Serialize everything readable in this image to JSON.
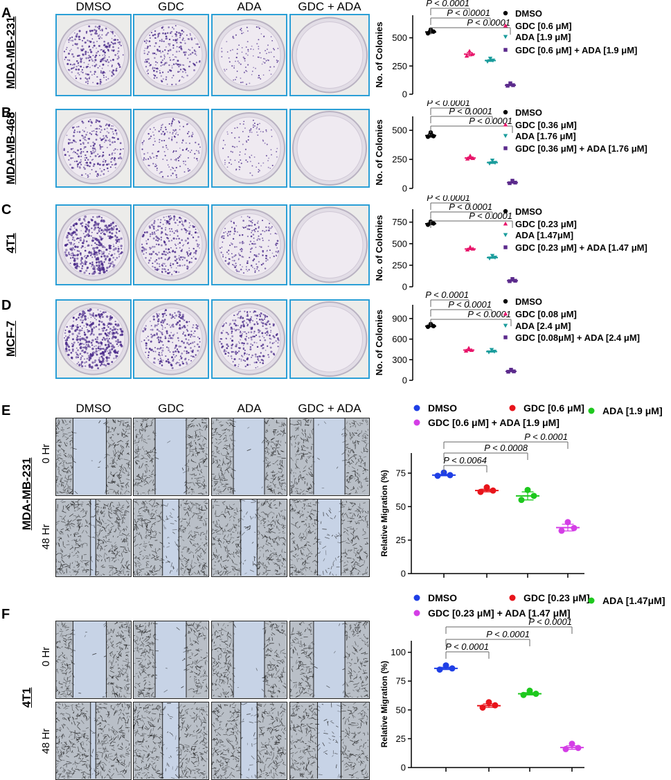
{
  "panels": {
    "A": {
      "letter": "A",
      "cell_line": "MDA-MB-231"
    },
    "B": {
      "letter": "B",
      "cell_line": "MDA-MB-468"
    },
    "C": {
      "letter": "C",
      "cell_line": "4T1"
    },
    "D": {
      "letter": "D",
      "cell_line": "MCF-7"
    },
    "E": {
      "letter": "E",
      "cell_line": "MDA-MB-231",
      "time_labels": [
        "0 Hr",
        "48 Hr"
      ]
    },
    "F": {
      "letter": "F",
      "cell_line": "4T1",
      "time_labels": [
        "0 Hr",
        "48 Hr"
      ]
    }
  },
  "column_headers": [
    "DMSO",
    "GDC",
    "ADA",
    "GDC + ADA"
  ],
  "colony_density": [
    [
      0.55,
      0.45,
      0.22,
      0.0
    ],
    [
      0.5,
      0.32,
      0.2,
      0.0
    ],
    [
      0.8,
      0.55,
      0.4,
      0.0
    ],
    [
      0.8,
      0.55,
      0.55,
      0.0
    ]
  ],
  "colors": {
    "frame_blue": "#2a9fd6",
    "col_dmso": "#000000",
    "col_gdc": "#e8156a",
    "col_ada": "#1a9c9c",
    "col_combo": "#5b2a8c",
    "mig_dmso": "#1f3fe6",
    "mig_gdc": "#e8141b",
    "mig_ada": "#1ec81e",
    "mig_combo": "#d43ee6",
    "stain": "#4a2a8a",
    "scratch_gap": "#c7d3e6"
  },
  "chart_data": [
    {
      "panel": "A",
      "type": "scatter",
      "ylabel": "No. of Colonies",
      "ylim": [
        0,
        700
      ],
      "yticks": [
        0,
        250,
        500
      ],
      "series": [
        {
          "name": "DMSO",
          "marker": "circle",
          "values": [
            540,
            560,
            555
          ]
        },
        {
          "name": "GDC [0.6 μM]",
          "marker": "triangle",
          "values": [
            340,
            370,
            355
          ]
        },
        {
          "name": "ADA [1.9 μM]",
          "marker": "triangle-down",
          "values": [
            290,
            305,
            300
          ]
        },
        {
          "name": "GDC [0.6 μM] + ADA [1.9 μM]",
          "marker": "square",
          "values": [
            75,
            85,
            80
          ]
        }
      ],
      "pvalues": [
        "P < 0.0001",
        "P < 0.0001",
        "P < 0.0001"
      ]
    },
    {
      "panel": "B",
      "type": "scatter",
      "ylabel": "No. of Colonies",
      "ylim": [
        0,
        620
      ],
      "yticks": [
        0,
        250,
        500
      ],
      "series": [
        {
          "name": "DMSO",
          "marker": "circle",
          "values": [
            445,
            470,
            450
          ]
        },
        {
          "name": "GDC [0.36 μM]",
          "marker": "triangle",
          "values": [
            255,
            270,
            260
          ]
        },
        {
          "name": "ADA [1.76 μM]",
          "marker": "triangle-down",
          "values": [
            215,
            230,
            222
          ]
        },
        {
          "name": "GDC [0.36 μM] + ADA [1.76 μM]",
          "marker": "square",
          "values": [
            45,
            55,
            50
          ]
        }
      ],
      "pvalues": [
        "P < 0.0001",
        "P < 0.0001",
        "P < 0.0001"
      ]
    },
    {
      "panel": "C",
      "type": "scatter",
      "ylabel": "No. of Colonies",
      "ylim": [
        0,
        900
      ],
      "yticks": [
        0,
        250,
        500,
        750
      ],
      "series": [
        {
          "name": "DMSO",
          "marker": "circle",
          "values": [
            720,
            740,
            735
          ]
        },
        {
          "name": "GDC [0.23 μM]",
          "marker": "triangle",
          "values": [
            430,
            445,
            440
          ]
        },
        {
          "name": "ADA [1.47μM]",
          "marker": "triangle-down",
          "values": [
            330,
            345,
            340
          ]
        },
        {
          "name": "GDC [0.23 μM] + ADA [1.47 μM]",
          "marker": "square",
          "values": [
            65,
            75,
            70
          ]
        }
      ],
      "pvalues": [
        "P < 0.0001",
        "P < 0.0001",
        "P < 0.0001"
      ]
    },
    {
      "panel": "D",
      "type": "scatter",
      "ylabel": "No. of Colonies",
      "ylim": [
        0,
        1100
      ],
      "yticks": [
        0,
        300,
        600,
        900
      ],
      "series": [
        {
          "name": "DMSO",
          "marker": "circle",
          "values": [
            780,
            800,
            790
          ]
        },
        {
          "name": "GDC [0.08 μM]",
          "marker": "triangle",
          "values": [
            430,
            450,
            440
          ]
        },
        {
          "name": "ADA [2.4 μM]",
          "marker": "triangle-down",
          "values": [
            410,
            425,
            420
          ]
        },
        {
          "name": "GDC [0.08μM] + ADA [2.4 μM]",
          "marker": "square",
          "values": [
            125,
            135,
            130
          ]
        }
      ],
      "pvalues": [
        "P < 0.0001",
        "P < 0.0001",
        "P < 0.0001"
      ]
    },
    {
      "panel": "E",
      "type": "scatter",
      "ylabel": "Relative Migration (%)",
      "ylim": [
        0,
        90
      ],
      "yticks": [
        0,
        25,
        50,
        75
      ],
      "series": [
        {
          "name": "DMSO",
          "marker": "circle",
          "values": [
            73,
            74,
            73.5
          ]
        },
        {
          "name": "GDC [0.6 μM]",
          "marker": "circle",
          "values": [
            61,
            63,
            62
          ]
        },
        {
          "name": "ADA [1.9 μM]",
          "marker": "circle",
          "values": [
            55,
            61,
            58
          ]
        },
        {
          "name": "GDC [0.6 μM] + ADA [1.9 μM]",
          "marker": "circle",
          "values": [
            32,
            37,
            34
          ]
        }
      ],
      "pvalues": [
        "P < 0.0064",
        "P < 0.0008",
        "P < 0.0001"
      ]
    },
    {
      "panel": "F",
      "type": "scatter",
      "ylabel": "Relative Migration (%)",
      "ylim": [
        0,
        110
      ],
      "yticks": [
        0,
        25,
        50,
        75,
        100
      ],
      "series": [
        {
          "name": "DMSO",
          "marker": "circle",
          "values": [
            85,
            87,
            86
          ]
        },
        {
          "name": "GDC [0.23 μM]",
          "marker": "circle",
          "values": [
            52,
            55,
            54
          ]
        },
        {
          "name": "ADA [1.47μM]",
          "marker": "circle",
          "values": [
            63,
            65,
            64
          ]
        },
        {
          "name": "GDC [0.23 μM] + ADA [1.47 μM]",
          "marker": "circle",
          "values": [
            16,
            19,
            17
          ]
        }
      ],
      "pvalues": [
        "P < 0.0001",
        "P < 0.0001",
        "P < 0.0001"
      ]
    }
  ]
}
